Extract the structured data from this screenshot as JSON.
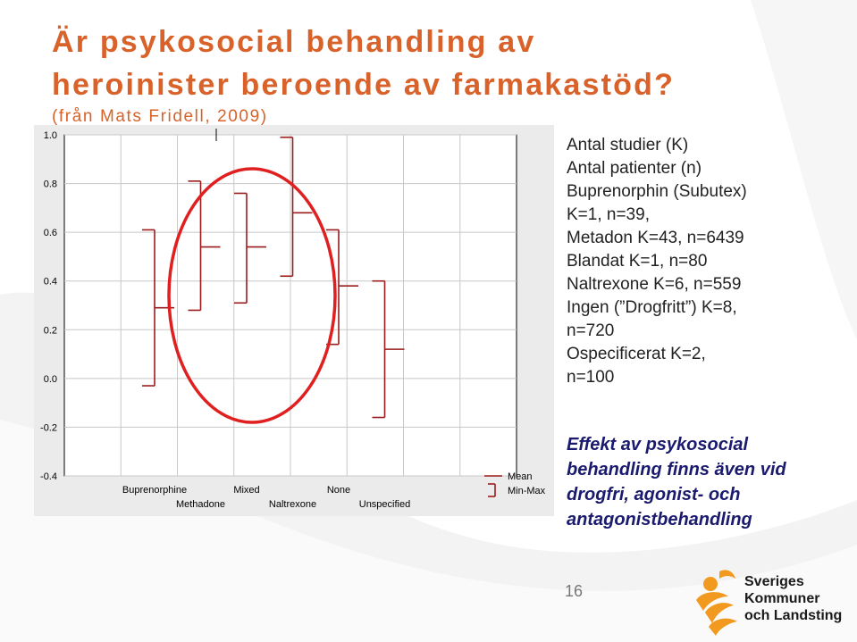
{
  "title": {
    "line1": "Är psykosocial behandling av",
    "line2": "heroinister beroende av farmakastöd?",
    "subtitle": "(från Mats Fridell, 2009)"
  },
  "colors": {
    "title": "#d9622b",
    "series": "#9b1c1c",
    "ellipse": "#e02020",
    "effekt": "#1a1a6e"
  },
  "chart_data": {
    "type": "errorbar",
    "title": "",
    "xlabel": "",
    "ylabel": "",
    "ylim": [
      -0.4,
      1.0
    ],
    "yticks": [
      1.0,
      0.8,
      0.6,
      0.4,
      0.2,
      0.0,
      -0.2,
      -0.4
    ],
    "ytick_labels": [
      "1.0",
      "0.8",
      "0.6",
      "0.4",
      "0.2",
      "0.0",
      "-0.2",
      "-0.4"
    ],
    "grid": true,
    "categories": [
      "Buprenorphine",
      "Methadone",
      "Mixed",
      "Naltrexone",
      "None",
      "Unspecified"
    ],
    "series": [
      {
        "name": "Buprenorphine",
        "mean": 0.29,
        "min": -0.03,
        "max": 0.61
      },
      {
        "name": "Methadone",
        "mean": 0.54,
        "min": 0.28,
        "max": 0.81
      },
      {
        "name": "Mixed",
        "mean": 0.54,
        "min": 0.31,
        "max": 0.76
      },
      {
        "name": "Naltrexone",
        "mean": 0.68,
        "min": 0.42,
        "max": 0.99
      },
      {
        "name": "None",
        "mean": 0.38,
        "min": 0.14,
        "max": 0.61
      },
      {
        "name": "Unspecified",
        "mean": 0.12,
        "min": -0.16,
        "max": 0.4
      }
    ],
    "legend": {
      "position": "bottom-right",
      "entries": [
        "Mean",
        "Min-Max"
      ]
    },
    "annotation": "ellipse around Methadone, Mixed and Naltrexone"
  },
  "info": {
    "lines": [
      "Antal studier (K)",
      "Antal patienter (n)",
      "Buprenorphin (Subutex)",
      "K=1, n=39,",
      "Metadon  K=43, n=6439",
      "Blandat K=1, n=80",
      "Naltrexone  K=6, n=559",
      "Ingen (”Drogfritt”)  K=8,",
      "n=720",
      "Ospecificerat K=2,",
      "n=100"
    ]
  },
  "effekt": {
    "lines": [
      "Effekt av psykosocial",
      "behandling finns även vid",
      "drogfri, agonist- och",
      "antagonistbehandling"
    ]
  },
  "page_number": "16",
  "logo": {
    "lines": [
      "Sveriges",
      "Kommuner",
      "och Landsting"
    ]
  }
}
